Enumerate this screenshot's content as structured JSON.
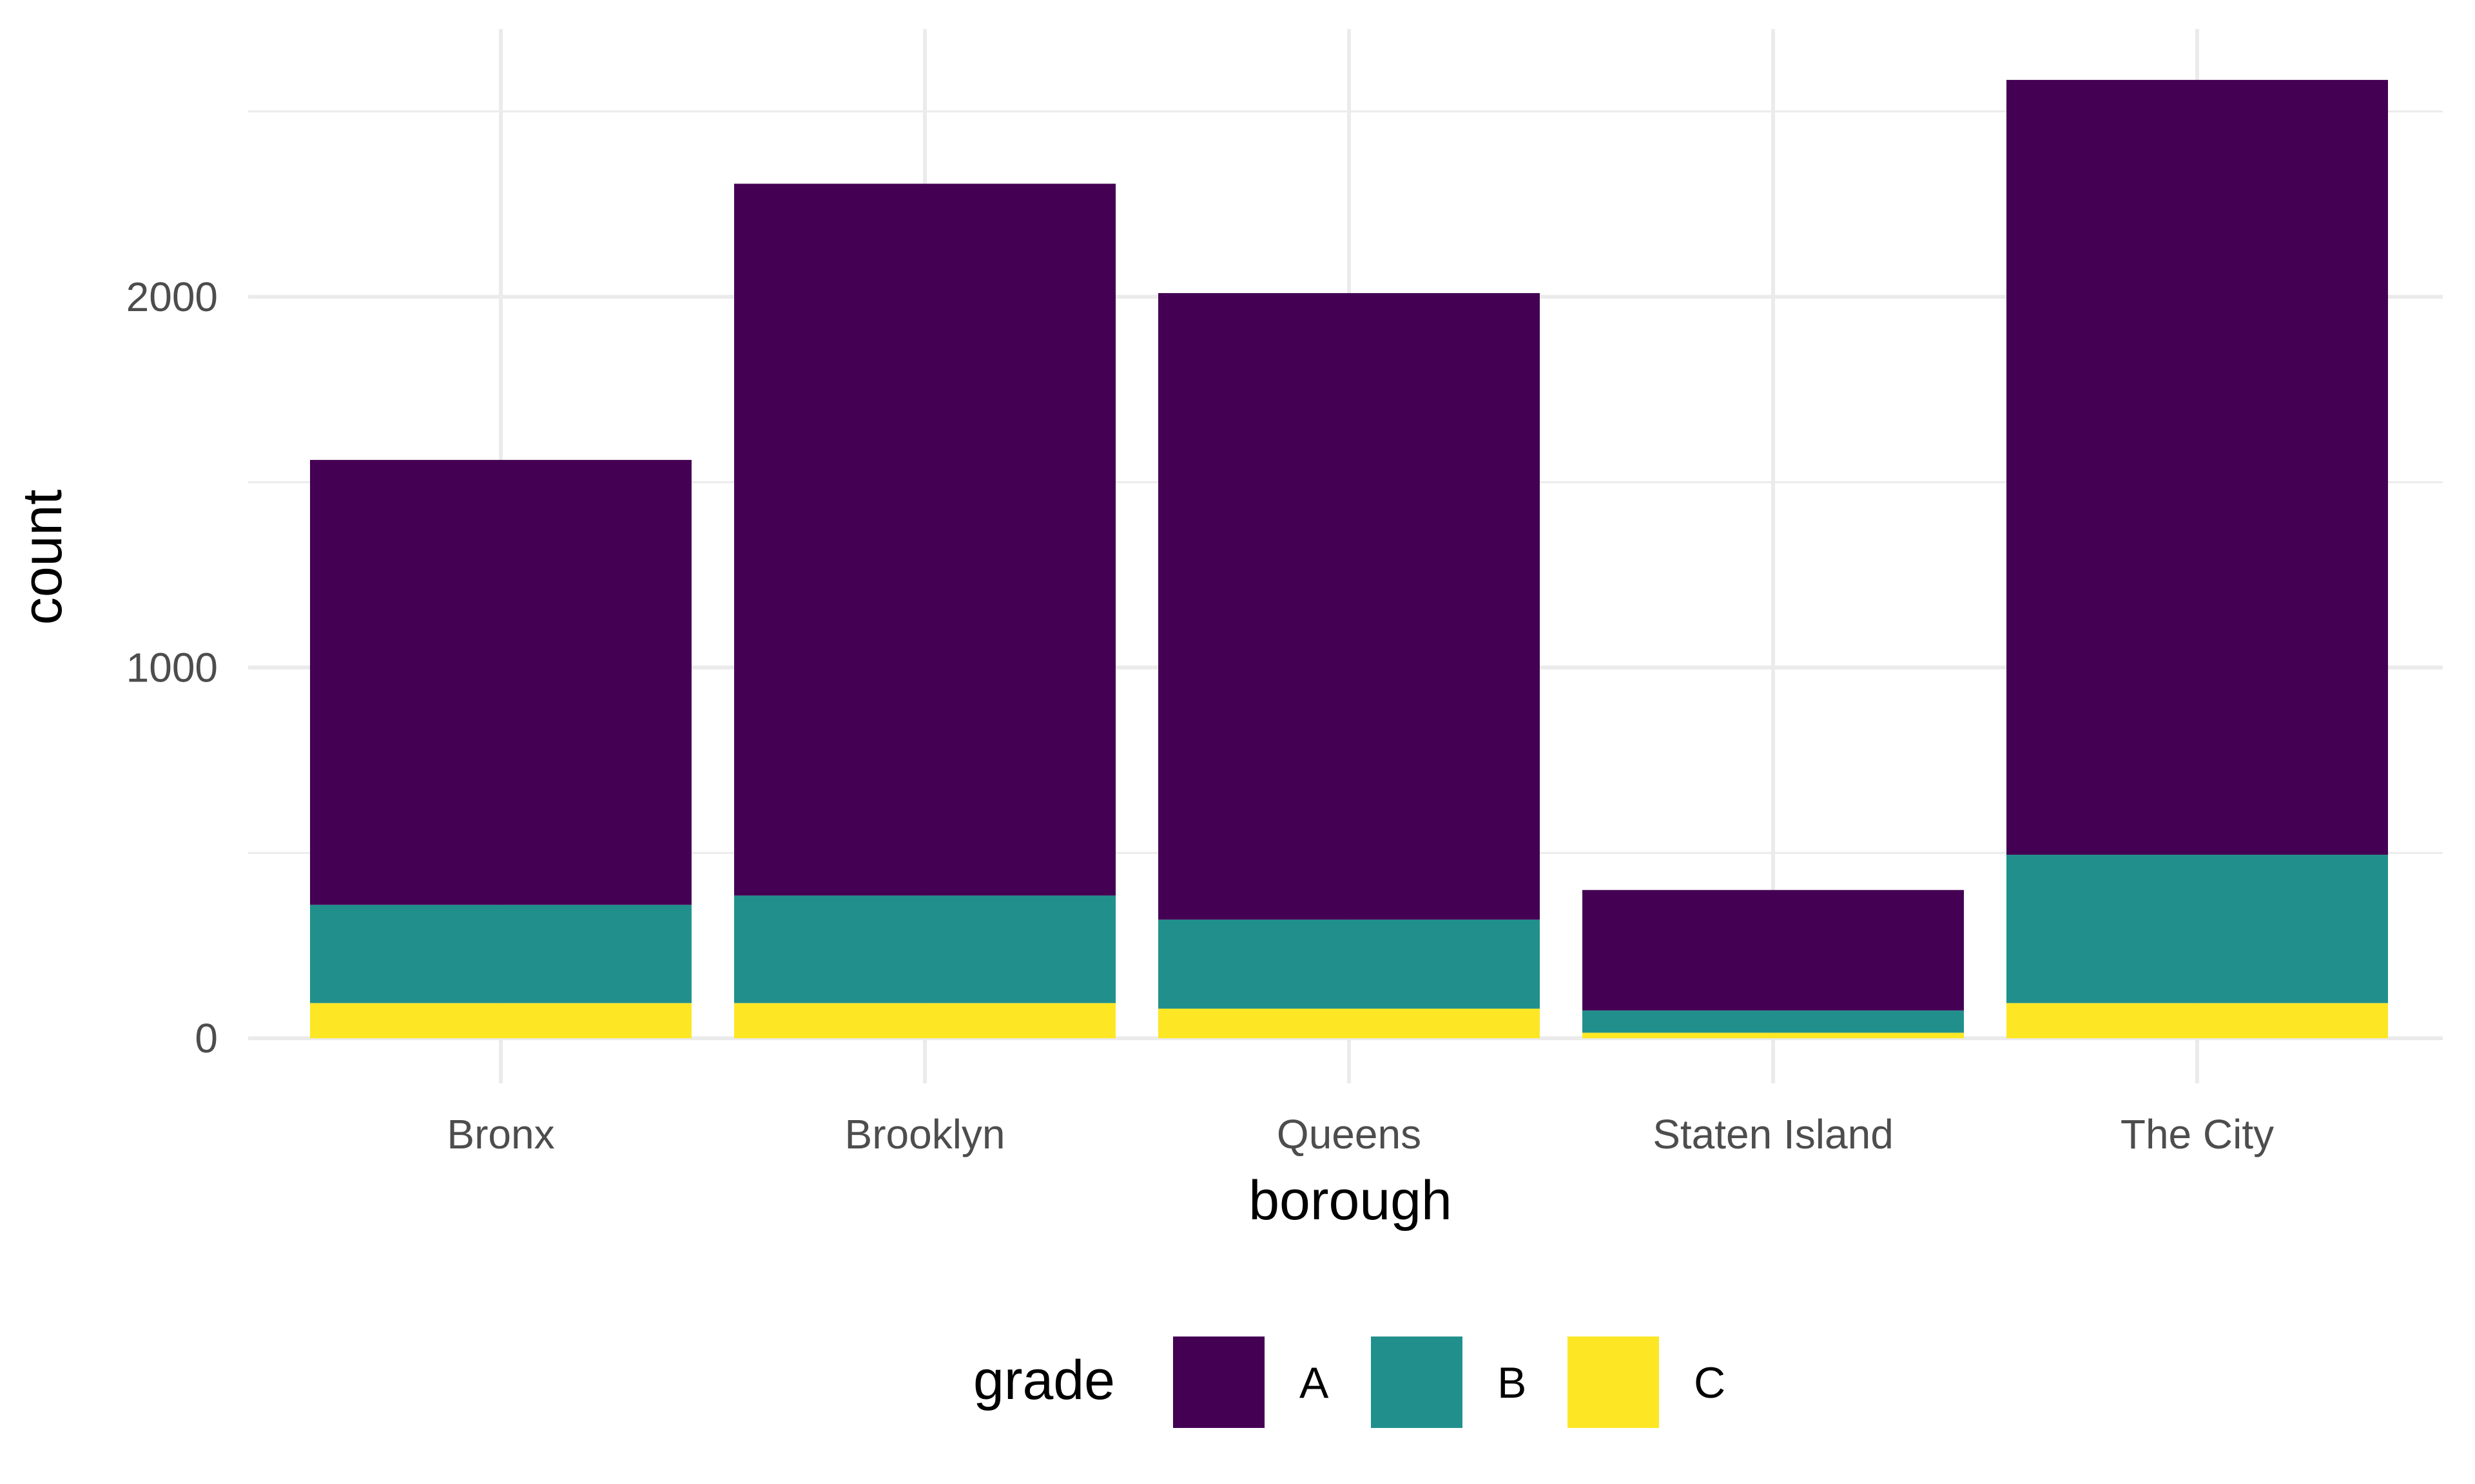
{
  "chart_data": {
    "type": "bar",
    "stacked": true,
    "categories": [
      "Bronx",
      "Brooklyn",
      "Queens",
      "Staten Island",
      "The City"
    ],
    "series": [
      {
        "name": "A",
        "color": "#440154",
        "values": [
          1200,
          1920,
          1690,
          325,
          2090
        ]
      },
      {
        "name": "B",
        "color": "#21908C",
        "values": [
          265,
          290,
          240,
          60,
          400
        ]
      },
      {
        "name": "C",
        "color": "#FDE725",
        "values": [
          95,
          95,
          80,
          15,
          95
        ]
      }
    ],
    "xlabel": "borough",
    "ylabel": "count",
    "ylim": [
      0,
      2800
    ],
    "yticks": [
      0,
      1000,
      2000
    ],
    "grid": true,
    "legend": {
      "title": "grade",
      "position": "bottom"
    }
  }
}
